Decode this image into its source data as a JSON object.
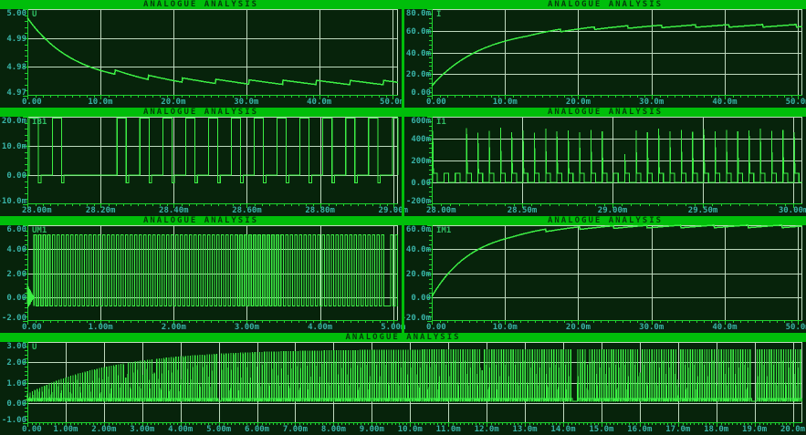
{
  "app": {
    "title": "ANALOGUE ANALYSIS"
  },
  "colors": {
    "panel_green": "#00be0a",
    "plot_bg": "#07230b",
    "grid": "#bed9be",
    "axis": "#1fd32f",
    "trace": "#3cee44",
    "tick_label": "#38b2a6",
    "trace_label": "#2fbf63",
    "title_text": "#05380a"
  },
  "chart_data": [
    {
      "type": "line",
      "title": "ANALOGUE ANALYSIS",
      "trace_label": "U",
      "x_ticks": [
        {
          "v": 0,
          "label": "0.00"
        },
        {
          "v": 10,
          "label": "10.0m"
        },
        {
          "v": 20,
          "label": "20.0m"
        },
        {
          "v": 30,
          "label": "30.0m"
        },
        {
          "v": 40,
          "label": "40.0m"
        },
        {
          "v": 50,
          "label": "50.0m"
        }
      ],
      "x_max": 50.8,
      "y_ticks": [
        {
          "v": 5.0,
          "label": "5.00"
        },
        {
          "v": 4.99,
          "label": "4.99"
        },
        {
          "v": 4.98,
          "label": "4.98"
        },
        {
          "v": 4.97,
          "label": "4.97"
        }
      ],
      "y_min": 4.97,
      "y_max": 5.0,
      "signal": {
        "kind": "exp",
        "y0": 4.997,
        "y_inf": 4.9738,
        "tau": 6.5,
        "ripple": {
          "start": 12,
          "period": 4.6,
          "amp": 0.0015,
          "shape": "down"
        }
      }
    },
    {
      "type": "line",
      "title": "ANALOGUE ANALYSIS",
      "trace_label": "I",
      "x_ticks": [
        {
          "v": 0,
          "label": "0.00"
        },
        {
          "v": 10,
          "label": "10.0m"
        },
        {
          "v": 20,
          "label": "20.0m"
        },
        {
          "v": 30,
          "label": "30.0m"
        },
        {
          "v": 40,
          "label": "40.0m"
        },
        {
          "v": 50,
          "label": "50.0m"
        }
      ],
      "x_max": 50.6,
      "y_ticks": [
        {
          "v": 80,
          "label": "80.0m"
        },
        {
          "v": 60,
          "label": "60.0m"
        },
        {
          "v": 40,
          "label": "40.0m"
        },
        {
          "v": 20,
          "label": "20.0m"
        },
        {
          "v": 0,
          "label": "0.00"
        }
      ],
      "y_min": 0,
      "y_max": 80,
      "signal": {
        "kind": "exp",
        "y0": 9,
        "y_inf": 63.5,
        "tau": 7,
        "ripple": {
          "start": 13,
          "period": 4.6,
          "amp": 2.4,
          "shape": "up"
        }
      }
    },
    {
      "type": "line",
      "title": "ANALOGUE ANALYSIS",
      "trace_label": "IB1",
      "x_ticks": [
        {
          "v": 28.0,
          "label": "28.00m"
        },
        {
          "v": 28.2,
          "label": "28.20m"
        },
        {
          "v": 28.4,
          "label": "28.40m"
        },
        {
          "v": 28.6,
          "label": "28.60m"
        },
        {
          "v": 28.8,
          "label": "28.80m"
        },
        {
          "v": 29.0,
          "label": "29.00m"
        }
      ],
      "x_max": 29.013,
      "y_ticks": [
        {
          "v": 20,
          "label": "20.0m"
        },
        {
          "v": 10,
          "label": "10.0m"
        },
        {
          "v": 0,
          "label": "0.00"
        },
        {
          "v": -10,
          "label": "-10.0m"
        }
      ],
      "y_min": -10,
      "y_max": 20,
      "signal": {
        "kind": "pulses",
        "high": 19.6,
        "low": 0,
        "width": 0.025,
        "under": -2.7,
        "under_w": 0.007,
        "pulses": [
          {
            "t": 28.005
          },
          {
            "t": 28.068
          },
          {
            "t": 28.245
          },
          {
            "t": 28.3075
          },
          {
            "t": 28.37
          },
          {
            "t": 28.4325
          },
          {
            "t": 28.495
          },
          {
            "t": 28.5575
          },
          {
            "t": 28.62
          },
          {
            "t": 28.6825
          },
          {
            "t": 28.745
          },
          {
            "t": 28.8075
          },
          {
            "t": 28.87
          },
          {
            "t": 28.9325
          },
          {
            "t": 28.998
          }
        ]
      }
    },
    {
      "type": "line",
      "title": "ANALOGUE ANALYSIS",
      "trace_label": "I1",
      "x_ticks": [
        {
          "v": 28.0,
          "label": "28.00m"
        },
        {
          "v": 28.5,
          "label": "28.50m"
        },
        {
          "v": 29.0,
          "label": "29.00m"
        },
        {
          "v": 29.5,
          "label": "29.50m"
        },
        {
          "v": 30.0,
          "label": "30.00m"
        }
      ],
      "x_max": 30.05,
      "y_ticks": [
        {
          "v": 600,
          "label": "600m"
        },
        {
          "v": 400,
          "label": "400m"
        },
        {
          "v": 200,
          "label": "200m"
        },
        {
          "v": 0,
          "label": "0.00"
        },
        {
          "v": -200,
          "label": "-200m"
        }
      ],
      "y_min": -200,
      "y_max": 600,
      "signal": {
        "kind": "spikes",
        "tail_h": 85,
        "tail_w": 0.026,
        "events": [
          {
            "t": 28.005,
            "peak": 470
          },
          {
            "t": 28.0675,
            "peak": 0
          },
          {
            "t": 28.13,
            "peak": 0
          },
          {
            "t": 28.1925,
            "peak": 495
          },
          {
            "t": 28.255,
            "peak": 455
          },
          {
            "t": 28.3175,
            "peak": 470
          },
          {
            "t": 28.38,
            "peak": 500
          },
          {
            "t": 28.4425,
            "peak": 460
          },
          {
            "t": 28.505,
            "peak": 475
          },
          {
            "t": 28.5675,
            "peak": 455
          },
          {
            "t": 28.63,
            "peak": 490
          },
          {
            "t": 28.6925,
            "peak": 465
          },
          {
            "t": 28.755,
            "peak": 475
          },
          {
            "t": 28.8175,
            "peak": 460
          },
          {
            "t": 28.88,
            "peak": 480
          },
          {
            "t": 28.9425,
            "peak": 465
          },
          {
            "t": 29.005,
            "peak": 0
          },
          {
            "t": 29.0675,
            "peak": 260
          },
          {
            "t": 29.13,
            "peak": 475
          },
          {
            "t": 29.1925,
            "peak": 460
          },
          {
            "t": 29.255,
            "peak": 490
          },
          {
            "t": 29.3175,
            "peak": 465
          },
          {
            "t": 29.38,
            "peak": 478
          },
          {
            "t": 29.4425,
            "peak": 462
          },
          {
            "t": 29.505,
            "peak": 488
          },
          {
            "t": 29.5675,
            "peak": 468
          },
          {
            "t": 29.63,
            "peak": 480
          },
          {
            "t": 29.6925,
            "peak": 465
          },
          {
            "t": 29.755,
            "peak": 475
          },
          {
            "t": 29.8175,
            "peak": 490
          },
          {
            "t": 29.88,
            "peak": 470
          },
          {
            "t": 29.9425,
            "peak": 480
          },
          {
            "t": 30.005,
            "peak": 460
          }
        ]
      }
    },
    {
      "type": "line",
      "title": "ANALOGUE ANALYSIS",
      "trace_label": "UM1",
      "x_ticks": [
        {
          "v": 0,
          "label": "0.00"
        },
        {
          "v": 1,
          "label": "1.00m"
        },
        {
          "v": 2,
          "label": "2.00m"
        },
        {
          "v": 3,
          "label": "3.00m"
        },
        {
          "v": 4,
          "label": "4.00m"
        },
        {
          "v": 5,
          "label": "5.00m"
        }
      ],
      "x_max": 5.065,
      "y_ticks": [
        {
          "v": 6,
          "label": "6.00"
        },
        {
          "v": 4,
          "label": "4.00"
        },
        {
          "v": 2,
          "label": "2.00"
        },
        {
          "v": 0,
          "label": "0.00"
        },
        {
          "v": -2,
          "label": "-2.00"
        }
      ],
      "y_min": -2,
      "y_max": 6,
      "signal": {
        "kind": "square",
        "t0": 0.09,
        "period": 0.0625,
        "duty": 0.5,
        "high": 5.2,
        "low": -0.75,
        "intro": {
          "amp": 1.0
        },
        "gaps": [
          [
            4.845,
            4.958
          ]
        ]
      }
    },
    {
      "type": "line",
      "title": "ANALOGUE ANALYSIS",
      "trace_label": "IM1",
      "x_ticks": [
        {
          "v": 0,
          "label": "0.00"
        },
        {
          "v": 10,
          "label": "10.0m"
        },
        {
          "v": 20,
          "label": "20.0m"
        },
        {
          "v": 30,
          "label": "30.0m"
        },
        {
          "v": 40,
          "label": "40.0m"
        },
        {
          "v": 50,
          "label": "50.0m"
        }
      ],
      "x_max": 50.6,
      "y_ticks": [
        {
          "v": 60,
          "label": "60.0m"
        },
        {
          "v": 40,
          "label": "40.0m"
        },
        {
          "v": 20,
          "label": "20.0m"
        },
        {
          "v": 0,
          "label": "0.00"
        },
        {
          "v": -20,
          "label": "-20.0m"
        }
      ],
      "y_min": -20,
      "y_max": 60,
      "signal": {
        "kind": "exp",
        "y0": 0.3,
        "y_inf": 58,
        "tau": 5.5,
        "ripple": {
          "start": 11,
          "period": 4.6,
          "amp": 2.2,
          "shape": "up"
        }
      }
    },
    {
      "type": "line",
      "title": "ANALOGUE ANALYSIS",
      "trace_label": "U",
      "x_ticks": [
        {
          "v": 0,
          "label": "0.00"
        },
        {
          "v": 1,
          "label": "1.00m"
        },
        {
          "v": 2,
          "label": "2.00m"
        },
        {
          "v": 3,
          "label": "3.00m"
        },
        {
          "v": 4,
          "label": "4.00m"
        },
        {
          "v": 5,
          "label": "5.00m"
        },
        {
          "v": 6,
          "label": "6.00m"
        },
        {
          "v": 7,
          "label": "7.00m"
        },
        {
          "v": 8,
          "label": "8.00m"
        },
        {
          "v": 9,
          "label": "9.00m"
        },
        {
          "v": 10,
          "label": "10.0m"
        },
        {
          "v": 11,
          "label": "11.0m"
        },
        {
          "v": 12,
          "label": "12.0m"
        },
        {
          "v": 13,
          "label": "13.0m"
        },
        {
          "v": 14,
          "label": "14.0m"
        },
        {
          "v": 15,
          "label": "15.0m"
        },
        {
          "v": 16,
          "label": "16.0m"
        },
        {
          "v": 17,
          "label": "17.0m"
        },
        {
          "v": 18,
          "label": "18.0m"
        },
        {
          "v": 19,
          "label": "19.0m"
        },
        {
          "v": 20,
          "label": "20.0m"
        }
      ],
      "x_max": 20.25,
      "y_ticks": [
        {
          "v": 3,
          "label": "3.00"
        },
        {
          "v": 2,
          "label": "2.00"
        },
        {
          "v": 1,
          "label": "1.00"
        },
        {
          "v": 0,
          "label": "0.00"
        },
        {
          "v": -1,
          "label": "-1.00"
        }
      ],
      "y_min": -1,
      "y_max": 3,
      "signal": {
        "kind": "spike_env",
        "period": 0.0625,
        "base": 0.08,
        "block_h": 0.22,
        "block_w": 0.03,
        "env_inf": 2.65,
        "env_amp": 2.2,
        "env_tau": 2.2,
        "gaps": [
          [
            4.94,
            5.04
          ],
          [
            14.25,
            14.36
          ],
          [
            18.9,
            19.01
          ]
        ],
        "short_spikes": [
          {
            "t": 2.55,
            "h": 1.25
          },
          {
            "t": 3.32,
            "h": 1.5
          },
          {
            "t": 11.9,
            "h": 1.6
          },
          {
            "t": 14.62,
            "h": 1.9
          },
          {
            "t": 15.97,
            "h": 1.5
          },
          {
            "t": 16.97,
            "h": 1.15
          }
        ]
      }
    }
  ]
}
